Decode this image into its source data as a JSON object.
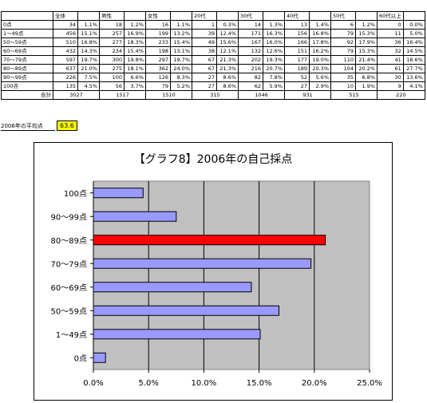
{
  "table": {
    "headers": [
      "",
      "全体",
      "",
      "男性",
      "",
      "女性",
      "",
      "20代",
      "",
      "30代",
      "",
      "40代",
      "",
      "50代",
      "",
      "60代以上",
      ""
    ],
    "rows": [
      [
        "0点",
        "34",
        "1.1%",
        "18",
        "1.2%",
        "16",
        "1.1%",
        "1",
        "0.3%",
        "14",
        "1.3%",
        "13",
        "1.4%",
        "6",
        "1.2%",
        "0",
        "0.0%"
      ],
      [
        "1〜49点",
        "456",
        "15.1%",
        "257",
        "16.9%",
        "199",
        "13.2%",
        "39",
        "12.4%",
        "171",
        "16.3%",
        "156",
        "16.8%",
        "79",
        "15.3%",
        "11",
        "5.0%"
      ],
      [
        "50〜59点",
        "510",
        "16.8%",
        "277",
        "18.3%",
        "233",
        "15.4%",
        "49",
        "15.6%",
        "167",
        "16.0%",
        "166",
        "17.8%",
        "92",
        "17.9%",
        "36",
        "16.4%"
      ],
      [
        "60〜69点",
        "432",
        "14.3%",
        "234",
        "15.4%",
        "198",
        "13.1%",
        "38",
        "12.1%",
        "132",
        "12.6%",
        "151",
        "16.2%",
        "79",
        "15.3%",
        "32",
        "14.5%"
      ],
      [
        "70〜79点",
        "597",
        "19.7%",
        "300",
        "19.8%",
        "297",
        "19.7%",
        "67",
        "21.3%",
        "202",
        "19.3%",
        "177",
        "19.0%",
        "110",
        "21.4%",
        "41",
        "18.6%"
      ],
      [
        "80〜89点",
        "637",
        "21.0%",
        "275",
        "18.1%",
        "362",
        "24.0%",
        "67",
        "21.3%",
        "216",
        "20.7%",
        "189",
        "20.3%",
        "104",
        "20.2%",
        "61",
        "27.7%"
      ],
      [
        "90〜99点",
        "226",
        "7.5%",
        "100",
        "6.6%",
        "126",
        "8.3%",
        "27",
        "8.6%",
        "82",
        "7.8%",
        "52",
        "5.6%",
        "35",
        "6.8%",
        "30",
        "13.6%"
      ],
      [
        "100点",
        "135",
        "4.5%",
        "56",
        "3.7%",
        "79",
        "5.2%",
        "27",
        "8.6%",
        "62",
        "5.9%",
        "27",
        "2.9%",
        "10",
        "1.9%",
        "9",
        "4.1%"
      ]
    ],
    "total_label": "合計",
    "totals": [
      "3027",
      "1517",
      "1510",
      "315",
      "1046",
      "931",
      "515",
      "220"
    ]
  },
  "average": {
    "label": "2006年の平均点",
    "value": "63.6"
  },
  "colors": {
    "bar": "#9999ff",
    "highlight": "#ff0000",
    "plot_bg": "#c0c0c0"
  },
  "chart_data": {
    "type": "bar",
    "orientation": "horizontal",
    "title": "【グラフ8】2006年の自己採点",
    "categories": [
      "100点",
      "90〜99点",
      "80〜89点",
      "70〜79点",
      "60〜69点",
      "50〜59点",
      "1〜49点",
      "0点"
    ],
    "values": [
      4.5,
      7.5,
      21.0,
      19.7,
      14.3,
      16.8,
      15.1,
      1.1
    ],
    "highlight_index": 2,
    "xlim": [
      0,
      25
    ],
    "xticks": [
      "0.0%",
      "5.0%",
      "10.0%",
      "15.0%",
      "20.0%",
      "25.0%"
    ],
    "grid": true
  }
}
